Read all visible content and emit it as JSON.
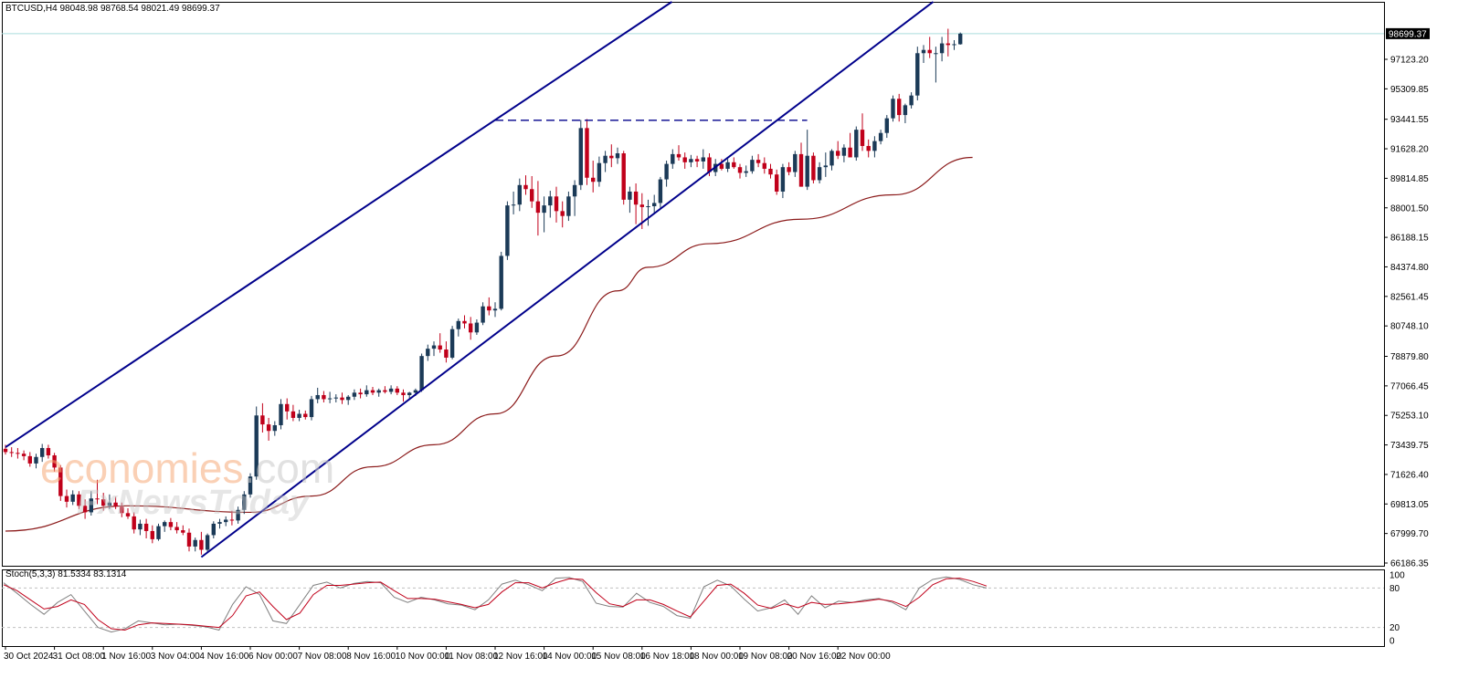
{
  "symbol": "BTCUSD",
  "timeframe": "H4",
  "ohlc_text": "BTCUSD,H4  98048.98 98768.54 98021.49 98699.37",
  "stoch_text": "Stoch(5,3,3) 81.5334 83.1314",
  "watermark": {
    "part1": "economies",
    "part2": ".com",
    "part3": "FxNewsToday"
  },
  "colors": {
    "bull": "#1b3a57",
    "bear": "#c0001a",
    "channel": "#00008b",
    "ma": "#8b1a1a",
    "stoch_main": "#808080",
    "stoch_signal": "#c0001a",
    "price_line": "#aadddd"
  },
  "chart_data": [
    {
      "type": "candlestick",
      "title": "BTCUSD,H4",
      "current_price": 98699.37,
      "current_price_label": "98699.37",
      "ylim": [
        66186.35,
        99571
      ],
      "y_ticks": [
        66186.35,
        67999.7,
        69813.05,
        71626.4,
        73439.75,
        75253.1,
        77066.45,
        78879.8,
        80748.1,
        82561.45,
        84374.8,
        86188.15,
        88001.5,
        89814.85,
        91628.2,
        93441.55,
        95309.85,
        97123.2
      ],
      "y_tick_labels": [
        "66186.35",
        "67999.70",
        "69813.05",
        "71626.40",
        "73439.75",
        "75253.10",
        "77066.45",
        "78879.80",
        "80748.10",
        "82561.45",
        "84374.80",
        "86188.15",
        "88001.50",
        "89814.85",
        "91628.20",
        "93441.55",
        "95309.85",
        "97123.20"
      ],
      "x_tick_labels": [
        "30 Oct 2024",
        "31 Oct 08:00",
        "1 Nov 16:00",
        "3 Nov 04:00",
        "4 Nov 16:00",
        "6 Nov 00:00",
        "7 Nov 08:00",
        "8 Nov 16:00",
        "10 Nov 00:00",
        "11 Nov 08:00",
        "12 Nov 16:00",
        "14 Nov 00:00",
        "15 Nov 08:00",
        "16 Nov 18:00",
        "18 Nov 00:00",
        "19 Nov 08:00",
        "20 Nov 16:00",
        "22 Nov 00:00"
      ],
      "channel": {
        "upper": [
          {
            "x": "30 Oct 2024",
            "y": 73300
          },
          {
            "x": "12 Nov 16:00",
            "y": 93400
          }
        ],
        "lower": [
          {
            "x": "4 Nov 16:00",
            "y": 66550
          },
          {
            "x": "19 Nov 08:00",
            "y": 91650
          }
        ],
        "extends": "right"
      },
      "resistance": {
        "y": 93380,
        "from": "12 Nov 16:00",
        "to": "20 Nov 16:00",
        "style": "dashed"
      },
      "candles": [
        [
          73200,
          73450,
          72850,
          73000
        ],
        [
          73000,
          73300,
          72700,
          72950
        ],
        [
          72950,
          73250,
          72600,
          72900
        ],
        [
          72900,
          73100,
          72500,
          72750
        ],
        [
          72750,
          73000,
          72100,
          72300
        ],
        [
          72300,
          72900,
          72000,
          72700
        ],
        [
          72700,
          73500,
          72400,
          73250
        ],
        [
          73250,
          73450,
          72600,
          72800
        ],
        [
          72800,
          72950,
          71800,
          72050
        ],
        [
          72050,
          72200,
          70000,
          70300
        ],
        [
          70300,
          70700,
          69600,
          69950
        ],
        [
          69950,
          70650,
          69750,
          70400
        ],
        [
          70400,
          70600,
          69500,
          69700
        ],
        [
          69700,
          70100,
          68900,
          69300
        ],
        [
          69300,
          70600,
          69100,
          70150
        ],
        [
          70150,
          71300,
          69800,
          70100
        ],
        [
          70100,
          70500,
          69400,
          69700
        ],
        [
          69700,
          70400,
          69500,
          69900
        ],
        [
          69900,
          70250,
          69500,
          69650
        ],
        [
          69650,
          69900,
          69000,
          69250
        ],
        [
          69250,
          69550,
          68900,
          69050
        ],
        [
          69050,
          69300,
          68000,
          68250
        ],
        [
          68250,
          68850,
          67900,
          68600
        ],
        [
          68600,
          68900,
          67700,
          68150
        ],
        [
          68150,
          68500,
          67400,
          67650
        ],
        [
          67650,
          68600,
          67550,
          68450
        ],
        [
          68450,
          68800,
          68100,
          68700
        ],
        [
          68700,
          68950,
          68200,
          68400
        ],
        [
          68400,
          68700,
          68000,
          68200
        ],
        [
          68200,
          68500,
          67900,
          68050
        ],
        [
          68050,
          68300,
          66900,
          67200
        ],
        [
          67200,
          67750,
          66900,
          67600
        ],
        [
          67600,
          68100,
          66700,
          67000
        ],
        [
          67000,
          68000,
          66850,
          67900
        ],
        [
          67900,
          68750,
          67700,
          68600
        ],
        [
          68600,
          68900,
          68300,
          68700
        ],
        [
          68700,
          69050,
          68450,
          68850
        ],
        [
          68850,
          69400,
          68500,
          68800
        ],
        [
          68800,
          69650,
          68600,
          69450
        ],
        [
          69450,
          70600,
          69200,
          70400
        ],
        [
          70400,
          71700,
          70200,
          71500
        ],
        [
          71500,
          75800,
          71300,
          75250
        ],
        [
          75250,
          76000,
          74200,
          74700
        ],
        [
          74700,
          75100,
          73700,
          74300
        ],
        [
          74300,
          74900,
          74000,
          74650
        ],
        [
          74650,
          76250,
          74400,
          75950
        ],
        [
          75950,
          76300,
          75000,
          75500
        ],
        [
          75500,
          75900,
          74900,
          75100
        ],
        [
          75100,
          75600,
          74900,
          75350
        ],
        [
          75350,
          75550,
          75000,
          75150
        ],
        [
          75150,
          76450,
          74950,
          76250
        ],
        [
          76250,
          76950,
          76000,
          76500
        ],
        [
          76500,
          76750,
          76050,
          76250
        ],
        [
          76250,
          76700,
          76000,
          76300
        ],
        [
          76300,
          76550,
          76050,
          76350
        ],
        [
          76350,
          76650,
          75950,
          76200
        ],
        [
          76200,
          76500,
          75900,
          76400
        ],
        [
          76400,
          76850,
          76200,
          76650
        ],
        [
          76650,
          76900,
          76300,
          76550
        ],
        [
          76550,
          77100,
          76400,
          76800
        ],
        [
          76800,
          77000,
          76500,
          76650
        ],
        [
          76650,
          76900,
          76400,
          76800
        ],
        [
          76800,
          77050,
          76600,
          76700
        ],
        [
          76700,
          77100,
          76550,
          76900
        ],
        [
          76900,
          77050,
          76500,
          76650
        ],
        [
          76650,
          76850,
          76100,
          76500
        ],
        [
          76500,
          76700,
          76300,
          76650
        ],
        [
          76650,
          76900,
          76450,
          76800
        ],
        [
          76800,
          79050,
          76700,
          78900
        ],
        [
          78900,
          79600,
          78600,
          79350
        ],
        [
          79350,
          79800,
          78900,
          79550
        ],
        [
          79550,
          80300,
          79100,
          79300
        ],
        [
          79300,
          79800,
          78500,
          78800
        ],
        [
          78800,
          80750,
          78700,
          80550
        ],
        [
          80550,
          81200,
          80100,
          81050
        ],
        [
          81050,
          81400,
          80600,
          80900
        ],
        [
          80900,
          81300,
          79900,
          80350
        ],
        [
          80350,
          81150,
          80200,
          80950
        ],
        [
          80950,
          82200,
          80800,
          81950
        ],
        [
          81950,
          82500,
          81400,
          81700
        ],
        [
          81700,
          82200,
          81300,
          81800
        ],
        [
          81800,
          85300,
          81700,
          85050
        ],
        [
          85050,
          88400,
          84800,
          88150
        ],
        [
          88150,
          89000,
          87600,
          88200
        ],
        [
          88200,
          89800,
          87800,
          89400
        ],
        [
          89400,
          90000,
          88800,
          89150
        ],
        [
          89150,
          89950,
          88000,
          88400
        ],
        [
          88400,
          89650,
          86300,
          87700
        ],
        [
          87700,
          88700,
          86500,
          88150
        ],
        [
          88150,
          89050,
          87400,
          88700
        ],
        [
          88700,
          89300,
          87100,
          87800
        ],
        [
          87800,
          88400,
          86800,
          87500
        ],
        [
          87500,
          89000,
          87200,
          88700
        ],
        [
          88700,
          89700,
          87500,
          89400
        ],
        [
          89400,
          93400,
          89100,
          92900
        ],
        [
          92900,
          93450,
          89400,
          89850
        ],
        [
          89850,
          90900,
          88950,
          89600
        ],
        [
          89600,
          91150,
          89300,
          90750
        ],
        [
          90750,
          91500,
          90200,
          91200
        ],
        [
          91200,
          91900,
          90500,
          91050
        ],
        [
          91050,
          91700,
          90700,
          91350
        ],
        [
          91350,
          91500,
          88200,
          88500
        ],
        [
          88500,
          89300,
          87700,
          89000
        ],
        [
          89000,
          89500,
          87000,
          88200
        ],
        [
          88200,
          88900,
          86700,
          88050
        ],
        [
          88050,
          88500,
          86900,
          88100
        ],
        [
          88100,
          88800,
          87600,
          88300
        ],
        [
          88300,
          89900,
          88000,
          89750
        ],
        [
          89750,
          90900,
          89300,
          90700
        ],
        [
          90700,
          91600,
          90400,
          91300
        ],
        [
          91300,
          91850,
          90900,
          91100
        ],
        [
          91100,
          91400,
          90400,
          90800
        ],
        [
          90800,
          91250,
          90500,
          91000
        ],
        [
          91000,
          91200,
          90500,
          90850
        ],
        [
          90850,
          91600,
          90400,
          91100
        ],
        [
          91100,
          91350,
          89950,
          90200
        ],
        [
          90200,
          91000,
          89950,
          90700
        ],
        [
          90700,
          91000,
          90300,
          90400
        ],
        [
          90400,
          91000,
          90200,
          90800
        ],
        [
          90800,
          91100,
          90400,
          90500
        ],
        [
          90500,
          90700,
          89800,
          90150
        ],
        [
          90150,
          90600,
          89900,
          90250
        ],
        [
          90250,
          91200,
          90100,
          90950
        ],
        [
          90950,
          91300,
          90500,
          90750
        ],
        [
          90750,
          91100,
          90100,
          90400
        ],
        [
          90400,
          90700,
          89800,
          90050
        ],
        [
          90050,
          90350,
          88800,
          89000
        ],
        [
          89000,
          90700,
          88600,
          90500
        ],
        [
          90500,
          90800,
          90000,
          90200
        ],
        [
          90200,
          91500,
          89900,
          91300
        ],
        [
          91300,
          92000,
          89300,
          89300
        ],
        [
          89300,
          92800,
          89100,
          91200
        ],
        [
          91200,
          91400,
          89500,
          89700
        ],
        [
          89700,
          90800,
          89500,
          90500
        ],
        [
          90500,
          91400,
          89900,
          90600
        ],
        [
          90600,
          91600,
          90300,
          91500
        ],
        [
          91500,
          92100,
          91000,
          91200
        ],
        [
          91200,
          91900,
          90800,
          91700
        ],
        [
          91700,
          92600,
          91300,
          91100
        ],
        [
          91100,
          93000,
          90900,
          92800
        ],
        [
          92800,
          93800,
          91500,
          91800
        ],
        [
          91800,
          92200,
          91100,
          91500
        ],
        [
          91500,
          92400,
          91100,
          92100
        ],
        [
          92100,
          92800,
          91900,
          92600
        ],
        [
          92600,
          93700,
          92300,
          93500
        ],
        [
          93500,
          94900,
          93300,
          94700
        ],
        [
          94700,
          95000,
          93300,
          93700
        ],
        [
          93700,
          94400,
          93200,
          94300
        ],
        [
          94300,
          95100,
          94100,
          94900
        ],
        [
          94900,
          97900,
          94600,
          97500
        ],
        [
          97500,
          98000,
          96900,
          97700
        ],
        [
          97700,
          98500,
          97200,
          97500
        ],
        [
          97500,
          97900,
          95700,
          97500
        ],
        [
          97500,
          98500,
          97000,
          98100
        ],
        [
          98100,
          99000,
          97300,
          98000
        ],
        [
          98000,
          98300,
          97700,
          98050
        ],
        [
          98048.98,
          98768.54,
          98021.49,
          98699.37
        ]
      ],
      "moving_average": [
        [
          0,
          68150
        ],
        [
          20,
          69700
        ],
        [
          40,
          69300
        ],
        [
          50,
          70300
        ],
        [
          60,
          72100
        ],
        [
          70,
          73450
        ],
        [
          80,
          75350
        ],
        [
          90,
          78900
        ],
        [
          100,
          82900
        ],
        [
          105,
          84350
        ],
        [
          115,
          85800
        ],
        [
          130,
          87300
        ],
        [
          145,
          88800
        ],
        [
          158,
          91100
        ]
      ]
    },
    {
      "type": "line",
      "title": "Stoch(5,3,3) 81.5334 83.1314",
      "ylim": [
        0,
        100
      ],
      "y_tick_labels": [
        "100",
        "80",
        "20",
        "0"
      ],
      "levels": [
        20,
        80
      ],
      "series": [
        {
          "values": [
            88,
            72,
            55,
            40,
            58,
            70,
            45,
            20,
            13,
            18,
            30,
            27,
            24,
            25,
            23,
            21,
            16,
            55,
            82,
            70,
            30,
            26,
            55,
            84,
            89,
            80,
            87,
            90,
            88,
            66,
            58,
            66,
            62,
            56,
            54,
            47,
            62,
            86,
            92,
            85,
            76,
            95,
            96,
            90,
            57,
            52,
            51,
            72,
            58,
            52,
            38,
            34,
            82,
            92,
            83,
            63,
            45,
            50,
            62,
            40,
            68,
            50,
            60,
            58,
            62,
            64,
            58,
            47,
            80,
            93,
            97,
            93,
            85,
            80
          ]
        },
        {
          "values": [
            85,
            76,
            62,
            48,
            52,
            62,
            55,
            32,
            18,
            16,
            24,
            27,
            26,
            25,
            24,
            22,
            20,
            38,
            68,
            74,
            52,
            32,
            42,
            70,
            84,
            84,
            86,
            88,
            89,
            76,
            64,
            64,
            63,
            59,
            55,
            50,
            55,
            74,
            88,
            88,
            80,
            88,
            94,
            93,
            73,
            56,
            52,
            62,
            62,
            55,
            45,
            36,
            60,
            84,
            86,
            72,
            54,
            49,
            56,
            50,
            58,
            55,
            56,
            58,
            60,
            63,
            60,
            52,
            66,
            85,
            94,
            95,
            90,
            83
          ]
        }
      ]
    }
  ]
}
